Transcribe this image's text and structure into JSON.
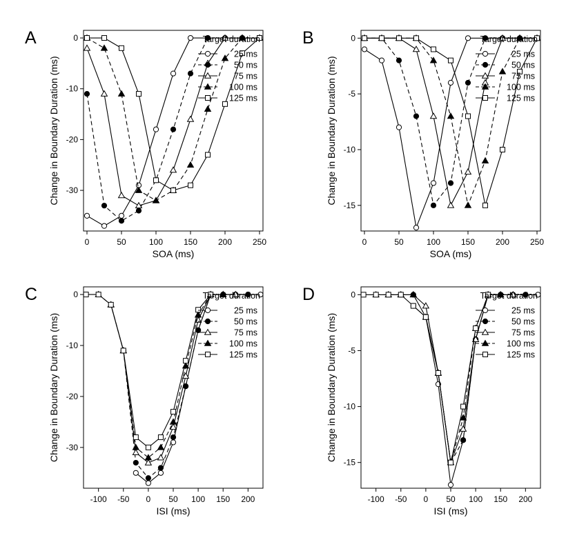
{
  "figure": {
    "panel_letters": [
      "A",
      "B",
      "C",
      "D"
    ]
  },
  "chart_data": [
    {
      "panel": "A",
      "type": "line",
      "xlabel": "SOA (ms)",
      "ylabel": "Change in Boundary Duration (ms)",
      "xlim": [
        -5,
        255
      ],
      "ylim": [
        -38,
        1.5
      ],
      "y_reversed": true,
      "xticks": [
        0,
        50,
        100,
        150,
        200,
        250
      ],
      "yticks": [
        0,
        -10,
        -20,
        -30
      ],
      "legend": {
        "title": "Target duration",
        "position": "top-right"
      },
      "series": [
        {
          "name": "25 ms",
          "marker": "circle-open",
          "dash": "solid",
          "x": [
            0,
            25,
            50,
            75,
            100,
            125,
            150,
            175,
            200,
            225,
            250
          ],
          "y": [
            -35,
            -37,
            -35,
            -29,
            -18,
            -7,
            0,
            0,
            0,
            0,
            0
          ]
        },
        {
          "name": "50 ms",
          "marker": "circle-filled",
          "dash": "dashed",
          "x": [
            0,
            25,
            50,
            75,
            100,
            125,
            150,
            175,
            200,
            225,
            250
          ],
          "y": [
            -11,
            -33,
            -36,
            -34,
            -28,
            -18,
            -7,
            0,
            0,
            0,
            0
          ]
        },
        {
          "name": "75 ms",
          "marker": "triangle-open",
          "dash": "solid",
          "x": [
            0,
            25,
            50,
            75,
            100,
            125,
            150,
            175,
            200,
            225,
            250
          ],
          "y": [
            -2,
            -11,
            -31,
            -33,
            -32,
            -26,
            -16,
            -5,
            0,
            0,
            0
          ]
        },
        {
          "name": "100 ms",
          "marker": "triangle-filled",
          "dash": "dashed",
          "x": [
            0,
            25,
            50,
            75,
            100,
            125,
            150,
            175,
            200,
            225,
            250
          ],
          "y": [
            0,
            -2,
            -11,
            -30,
            -32,
            -30,
            -25,
            -14,
            -4,
            0,
            0
          ]
        },
        {
          "name": "125 ms",
          "marker": "square-open",
          "dash": "solid",
          "x": [
            0,
            25,
            50,
            75,
            100,
            125,
            150,
            175,
            200,
            225,
            250
          ],
          "y": [
            0,
            0,
            -2,
            -11,
            -28,
            -30,
            -29,
            -23,
            -13,
            -3,
            0
          ]
        }
      ]
    },
    {
      "panel": "B",
      "type": "line",
      "xlabel": "SOA (ms)",
      "ylabel": "Change in Boundary Duration (ms)",
      "xlim": [
        -5,
        255
      ],
      "ylim": [
        -17.3,
        0.7
      ],
      "y_reversed": true,
      "xticks": [
        0,
        50,
        100,
        150,
        200,
        250
      ],
      "yticks": [
        0,
        -5,
        -10,
        -15
      ],
      "legend": {
        "title": "Target duration",
        "position": "top-right"
      },
      "series": [
        {
          "name": "25 ms",
          "marker": "circle-open",
          "dash": "solid",
          "x": [
            0,
            25,
            50,
            75,
            100,
            125,
            150,
            175,
            200,
            225,
            250
          ],
          "y": [
            -1,
            -2,
            -8,
            -17,
            -13,
            -4,
            0,
            0,
            0,
            0,
            0
          ]
        },
        {
          "name": "50 ms",
          "marker": "circle-filled",
          "dash": "dashed",
          "x": [
            0,
            25,
            50,
            75,
            100,
            125,
            150,
            175,
            200,
            225,
            250
          ],
          "y": [
            0,
            0,
            -2,
            -7,
            -15,
            -13,
            -4,
            0,
            0,
            0,
            0
          ]
        },
        {
          "name": "75 ms",
          "marker": "triangle-open",
          "dash": "solid",
          "x": [
            0,
            25,
            50,
            75,
            100,
            125,
            150,
            175,
            200,
            225,
            250
          ],
          "y": [
            0,
            0,
            0,
            -1,
            -7,
            -15,
            -12,
            -4,
            0,
            0,
            0
          ]
        },
        {
          "name": "100 ms",
          "marker": "triangle-filled",
          "dash": "dashed",
          "x": [
            0,
            25,
            50,
            75,
            100,
            125,
            150,
            175,
            200,
            225,
            250
          ],
          "y": [
            0,
            0,
            0,
            0,
            -2,
            -7,
            -15,
            -11,
            -3,
            0,
            0
          ]
        },
        {
          "name": "125 ms",
          "marker": "square-open",
          "dash": "solid",
          "x": [
            0,
            25,
            50,
            75,
            100,
            125,
            150,
            175,
            200,
            225,
            250
          ],
          "y": [
            0,
            0,
            0,
            0,
            -1,
            -2,
            -7,
            -15,
            -10,
            -3,
            0
          ]
        }
      ]
    },
    {
      "panel": "C",
      "type": "line",
      "xlabel": "ISI (ms)",
      "ylabel": "Change in Boundary Duration (ms)",
      "xlim": [
        -130,
        230
      ],
      "ylim": [
        -38,
        1.5
      ],
      "y_reversed": true,
      "xticks": [
        -100,
        -50,
        0,
        50,
        100,
        150,
        200
      ],
      "yticks": [
        0,
        -10,
        -20,
        -30
      ],
      "legend": {
        "title": "Target duration",
        "position": "top-right"
      },
      "series": [
        {
          "name": "25 ms",
          "marker": "circle-open",
          "dash": "solid",
          "x": [
            -25,
            0,
            25,
            50,
            75,
            100,
            125,
            150,
            175,
            200,
            225
          ],
          "y": [
            -35,
            -37,
            -35,
            -29,
            -18,
            -7,
            0,
            0,
            0,
            0,
            0
          ]
        },
        {
          "name": "50 ms",
          "marker": "circle-filled",
          "dash": "dashed",
          "x": [
            -50,
            -25,
            0,
            25,
            50,
            75,
            100,
            125,
            150,
            175,
            200
          ],
          "y": [
            -11,
            -33,
            -36,
            -34,
            -28,
            -18,
            -7,
            0,
            0,
            0,
            0
          ]
        },
        {
          "name": "75 ms",
          "marker": "triangle-open",
          "dash": "solid",
          "x": [
            -75,
            -50,
            -25,
            0,
            25,
            50,
            75,
            100,
            125,
            150,
            175
          ],
          "y": [
            -2,
            -11,
            -31,
            -33,
            -32,
            -26,
            -16,
            -5,
            0,
            0,
            0
          ]
        },
        {
          "name": "100 ms",
          "marker": "triangle-filled",
          "dash": "dashed",
          "x": [
            -100,
            -75,
            -50,
            -25,
            0,
            25,
            50,
            75,
            100,
            125,
            150
          ],
          "y": [
            0,
            -2,
            -11,
            -30,
            -32,
            -30,
            -25,
            -14,
            -4,
            0,
            0
          ]
        },
        {
          "name": "125 ms",
          "marker": "square-open",
          "dash": "solid",
          "x": [
            -125,
            -100,
            -75,
            -50,
            -25,
            0,
            25,
            50,
            75,
            100,
            125
          ],
          "y": [
            0,
            0,
            -2,
            -11,
            -28,
            -30,
            -28,
            -23,
            -13,
            -3,
            0
          ]
        }
      ]
    },
    {
      "panel": "D",
      "type": "line",
      "xlabel": "ISI (ms)",
      "ylabel": "Change in Boundary Duration (ms)",
      "xlim": [
        -130,
        230
      ],
      "ylim": [
        -17.3,
        0.7
      ],
      "y_reversed": true,
      "xticks": [
        -100,
        -50,
        0,
        50,
        100,
        150,
        200
      ],
      "yticks": [
        0,
        -5,
        -10,
        -15
      ],
      "legend": {
        "title": "Target duration",
        "position": "top-right"
      },
      "series": [
        {
          "name": "25 ms",
          "marker": "circle-open",
          "dash": "solid",
          "x": [
            -25,
            0,
            25,
            50,
            75,
            100,
            125,
            150,
            175,
            200,
            225
          ],
          "y": [
            -1,
            -2,
            -8,
            -17,
            -13,
            -4,
            0,
            0,
            0,
            0,
            0
          ]
        },
        {
          "name": "50 ms",
          "marker": "circle-filled",
          "dash": "dashed",
          "x": [
            -50,
            -25,
            0,
            25,
            50,
            75,
            100,
            125,
            150,
            175,
            200
          ],
          "y": [
            0,
            0,
            -2,
            -7,
            -15,
            -13,
            -4,
            0,
            0,
            0,
            0
          ]
        },
        {
          "name": "75 ms",
          "marker": "triangle-open",
          "dash": "solid",
          "x": [
            -75,
            -50,
            -25,
            0,
            25,
            50,
            75,
            100,
            125,
            150,
            175
          ],
          "y": [
            0,
            0,
            0,
            -1,
            -7,
            -15,
            -12,
            -4,
            0,
            0,
            0
          ]
        },
        {
          "name": "100 ms",
          "marker": "triangle-filled",
          "dash": "dashed",
          "x": [
            -100,
            -75,
            -50,
            -25,
            0,
            25,
            50,
            75,
            100,
            125,
            150
          ],
          "y": [
            0,
            0,
            0,
            0,
            -2,
            -7,
            -15,
            -11,
            -3,
            0,
            0
          ]
        },
        {
          "name": "125 ms",
          "marker": "square-open",
          "dash": "solid",
          "x": [
            -125,
            -100,
            -75,
            -50,
            -25,
            0,
            25,
            50,
            75,
            100,
            125
          ],
          "y": [
            0,
            0,
            0,
            0,
            -1,
            -2,
            -7,
            -15,
            -10,
            -3,
            0
          ]
        }
      ]
    }
  ]
}
